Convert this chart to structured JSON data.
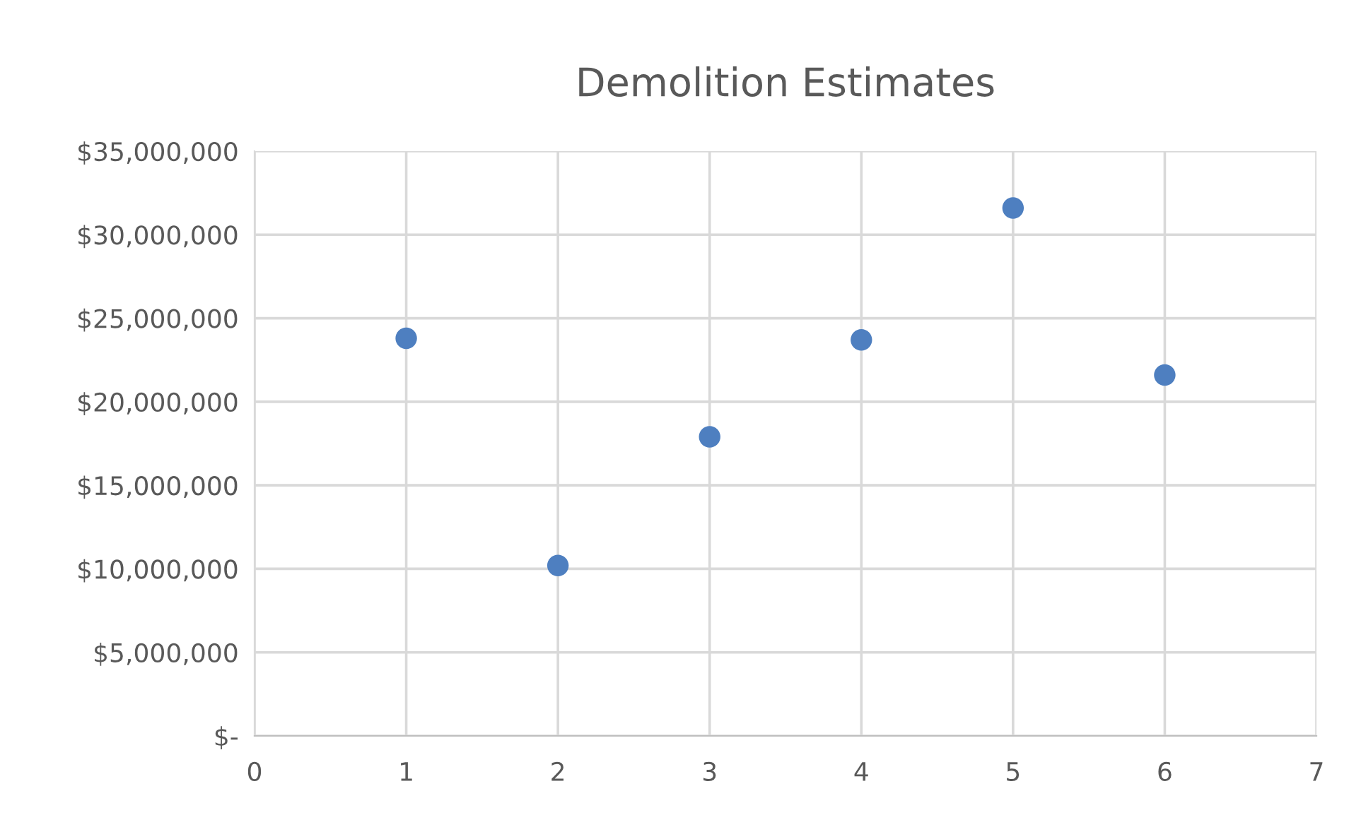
{
  "chart_data": {
    "type": "scatter",
    "title": "Demolition Estimates",
    "x": [
      1,
      2,
      3,
      4,
      5,
      6
    ],
    "series": [
      {
        "color": "#4e7fc0",
        "values": [
          23800000,
          10200000,
          17900000,
          23700000,
          31600000,
          21600000
        ]
      }
    ],
    "xlim": [
      0,
      7
    ],
    "xticks": [
      0,
      1,
      2,
      3,
      4,
      5,
      6,
      7
    ],
    "ylim": [
      0,
      35000000
    ],
    "yticks": [
      {
        "value": 0,
        "label": "$-"
      },
      {
        "value": 5000000,
        "label": "$5,000,000"
      },
      {
        "value": 10000000,
        "label": "$10,000,000"
      },
      {
        "value": 15000000,
        "label": "$15,000,000"
      },
      {
        "value": 20000000,
        "label": "$20,000,000"
      },
      {
        "value": 25000000,
        "label": "$25,000,000"
      },
      {
        "value": 30000000,
        "label": "$30,000,000"
      },
      {
        "value": 35000000,
        "label": "$35,000,000"
      }
    ],
    "grid": true,
    "marker": "circle",
    "legend": false
  }
}
